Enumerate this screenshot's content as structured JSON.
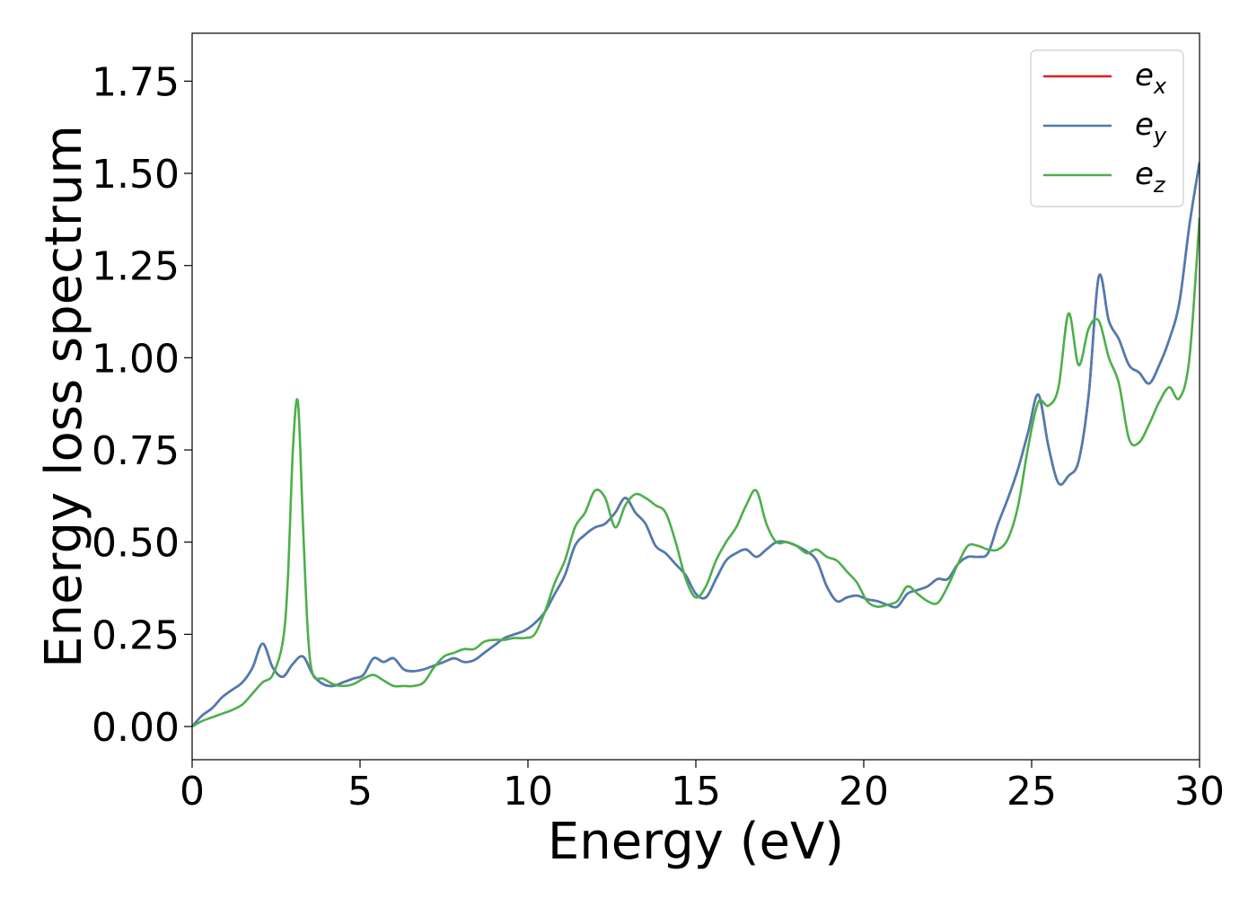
{
  "chart_data": {
    "type": "line",
    "title": "",
    "xlabel": "Energy (eV)",
    "ylabel": "Energy loss spectrum",
    "xlim": [
      0,
      30
    ],
    "ylim": [
      -0.09,
      1.88
    ],
    "xticks": [
      0,
      5,
      10,
      15,
      20,
      25,
      30
    ],
    "xtick_labels": [
      "0",
      "5",
      "10",
      "15",
      "20",
      "25",
      "30"
    ],
    "yticks": [
      0.0,
      0.25,
      0.5,
      0.75,
      1.0,
      1.25,
      1.5,
      1.75
    ],
    "ytick_labels": [
      "0.00",
      "0.25",
      "0.50",
      "0.75",
      "1.00",
      "1.25",
      "1.50",
      "1.75"
    ],
    "grid": false,
    "legend_position": "top-right",
    "series": [
      {
        "name": "e_x",
        "legend_main": "e",
        "legend_sub": "x",
        "color": "#e41a1c",
        "x": [
          0,
          0.3,
          0.6,
          0.9,
          1.2,
          1.5,
          1.8,
          2.1,
          2.4,
          2.7,
          3.0,
          3.3,
          3.6,
          3.9,
          4.2,
          4.5,
          4.8,
          5.1,
          5.4,
          5.7,
          6.0,
          6.3,
          6.6,
          6.9,
          7.2,
          7.5,
          7.8,
          8.1,
          8.4,
          8.7,
          9.0,
          9.3,
          9.6,
          9.9,
          10.2,
          10.5,
          10.8,
          11.1,
          11.4,
          11.7,
          12.0,
          12.3,
          12.6,
          12.9,
          13.2,
          13.5,
          13.8,
          14.1,
          14.4,
          14.7,
          15.0,
          15.3,
          15.6,
          15.9,
          16.2,
          16.5,
          16.8,
          17.1,
          17.4,
          17.7,
          18.0,
          18.3,
          18.6,
          18.9,
          19.2,
          19.5,
          19.8,
          20.1,
          20.4,
          20.7,
          21.0,
          21.3,
          21.6,
          21.9,
          22.2,
          22.5,
          22.8,
          23.1,
          23.4,
          23.7,
          24.0,
          24.3,
          24.6,
          24.9,
          25.2,
          25.5,
          25.8,
          26.1,
          26.4,
          26.7,
          27.0,
          27.3,
          27.6,
          27.9,
          28.2,
          28.5,
          28.8,
          29.1,
          29.4,
          29.7,
          30.0
        ],
        "y": [
          0,
          0.03,
          0.05,
          0.08,
          0.1,
          0.12,
          0.16,
          0.225,
          0.16,
          0.135,
          0.17,
          0.19,
          0.14,
          0.115,
          0.11,
          0.12,
          0.13,
          0.14,
          0.185,
          0.175,
          0.185,
          0.155,
          0.15,
          0.155,
          0.165,
          0.175,
          0.185,
          0.175,
          0.18,
          0.2,
          0.22,
          0.24,
          0.25,
          0.26,
          0.28,
          0.31,
          0.36,
          0.41,
          0.49,
          0.52,
          0.54,
          0.55,
          0.58,
          0.62,
          0.58,
          0.55,
          0.49,
          0.47,
          0.44,
          0.41,
          0.36,
          0.35,
          0.4,
          0.45,
          0.47,
          0.48,
          0.46,
          0.48,
          0.5,
          0.5,
          0.49,
          0.475,
          0.45,
          0.38,
          0.34,
          0.35,
          0.355,
          0.345,
          0.34,
          0.33,
          0.325,
          0.36,
          0.37,
          0.38,
          0.4,
          0.4,
          0.44,
          0.46,
          0.46,
          0.47,
          0.55,
          0.62,
          0.7,
          0.8,
          0.9,
          0.76,
          0.66,
          0.68,
          0.72,
          0.9,
          1.22,
          1.1,
          1.05,
          0.98,
          0.96,
          0.93,
          0.98,
          1.05,
          1.15,
          1.36,
          1.53
        ]
      },
      {
        "name": "e_y",
        "legend_main": "e",
        "legend_sub": "y",
        "color": "#4a7db5",
        "x": [
          0,
          0.3,
          0.6,
          0.9,
          1.2,
          1.5,
          1.8,
          2.1,
          2.4,
          2.7,
          3.0,
          3.3,
          3.6,
          3.9,
          4.2,
          4.5,
          4.8,
          5.1,
          5.4,
          5.7,
          6.0,
          6.3,
          6.6,
          6.9,
          7.2,
          7.5,
          7.8,
          8.1,
          8.4,
          8.7,
          9.0,
          9.3,
          9.6,
          9.9,
          10.2,
          10.5,
          10.8,
          11.1,
          11.4,
          11.7,
          12.0,
          12.3,
          12.6,
          12.9,
          13.2,
          13.5,
          13.8,
          14.1,
          14.4,
          14.7,
          15.0,
          15.3,
          15.6,
          15.9,
          16.2,
          16.5,
          16.8,
          17.1,
          17.4,
          17.7,
          18.0,
          18.3,
          18.6,
          18.9,
          19.2,
          19.5,
          19.8,
          20.1,
          20.4,
          20.7,
          21.0,
          21.3,
          21.6,
          21.9,
          22.2,
          22.5,
          22.8,
          23.1,
          23.4,
          23.7,
          24.0,
          24.3,
          24.6,
          24.9,
          25.2,
          25.5,
          25.8,
          26.1,
          26.4,
          26.7,
          27.0,
          27.3,
          27.6,
          27.9,
          28.2,
          28.5,
          28.8,
          29.1,
          29.4,
          29.7,
          30.0
        ],
        "y": [
          0,
          0.03,
          0.05,
          0.08,
          0.1,
          0.12,
          0.16,
          0.225,
          0.16,
          0.135,
          0.17,
          0.19,
          0.14,
          0.115,
          0.11,
          0.12,
          0.13,
          0.14,
          0.185,
          0.175,
          0.185,
          0.155,
          0.15,
          0.155,
          0.165,
          0.175,
          0.185,
          0.175,
          0.18,
          0.2,
          0.22,
          0.24,
          0.25,
          0.26,
          0.28,
          0.31,
          0.36,
          0.41,
          0.49,
          0.52,
          0.54,
          0.55,
          0.58,
          0.62,
          0.58,
          0.55,
          0.49,
          0.47,
          0.44,
          0.41,
          0.36,
          0.35,
          0.4,
          0.45,
          0.47,
          0.48,
          0.46,
          0.48,
          0.5,
          0.5,
          0.49,
          0.475,
          0.45,
          0.38,
          0.34,
          0.35,
          0.355,
          0.345,
          0.34,
          0.33,
          0.325,
          0.36,
          0.37,
          0.38,
          0.4,
          0.4,
          0.44,
          0.46,
          0.46,
          0.47,
          0.55,
          0.62,
          0.7,
          0.8,
          0.9,
          0.76,
          0.66,
          0.68,
          0.72,
          0.9,
          1.22,
          1.1,
          1.05,
          0.98,
          0.96,
          0.93,
          0.98,
          1.05,
          1.15,
          1.36,
          1.53
        ]
      },
      {
        "name": "e_z",
        "legend_main": "e",
        "legend_sub": "z",
        "color": "#4daf4a",
        "x": [
          0,
          0.3,
          0.6,
          0.9,
          1.2,
          1.5,
          1.8,
          2.1,
          2.4,
          2.7,
          2.85,
          3.0,
          3.15,
          3.3,
          3.45,
          3.6,
          3.9,
          4.2,
          4.5,
          4.8,
          5.1,
          5.4,
          5.7,
          6.0,
          6.3,
          6.6,
          6.9,
          7.2,
          7.5,
          7.8,
          8.1,
          8.4,
          8.7,
          9.0,
          9.3,
          9.6,
          9.9,
          10.2,
          10.5,
          10.8,
          11.1,
          11.4,
          11.7,
          12.0,
          12.3,
          12.6,
          12.9,
          13.2,
          13.5,
          13.8,
          14.1,
          14.4,
          14.7,
          15.0,
          15.3,
          15.6,
          15.9,
          16.2,
          16.5,
          16.8,
          17.1,
          17.4,
          17.7,
          18.0,
          18.3,
          18.6,
          18.9,
          19.2,
          19.5,
          19.8,
          20.1,
          20.4,
          20.7,
          21.0,
          21.3,
          21.6,
          21.9,
          22.2,
          22.5,
          22.8,
          23.1,
          23.4,
          23.7,
          24.0,
          24.3,
          24.6,
          24.9,
          25.2,
          25.5,
          25.8,
          26.1,
          26.4,
          26.7,
          27.0,
          27.3,
          27.6,
          27.9,
          28.2,
          28.5,
          28.8,
          29.1,
          29.4,
          29.7,
          30.0
        ],
        "y": [
          0,
          0.015,
          0.025,
          0.035,
          0.045,
          0.06,
          0.09,
          0.12,
          0.14,
          0.23,
          0.4,
          0.75,
          0.88,
          0.55,
          0.25,
          0.14,
          0.13,
          0.115,
          0.11,
          0.115,
          0.13,
          0.14,
          0.125,
          0.11,
          0.11,
          0.11,
          0.12,
          0.16,
          0.19,
          0.2,
          0.21,
          0.21,
          0.23,
          0.235,
          0.235,
          0.24,
          0.24,
          0.25,
          0.31,
          0.39,
          0.45,
          0.54,
          0.58,
          0.64,
          0.62,
          0.54,
          0.6,
          0.63,
          0.62,
          0.6,
          0.58,
          0.5,
          0.4,
          0.35,
          0.38,
          0.45,
          0.5,
          0.54,
          0.6,
          0.64,
          0.55,
          0.5,
          0.5,
          0.49,
          0.47,
          0.48,
          0.46,
          0.45,
          0.42,
          0.39,
          0.34,
          0.325,
          0.33,
          0.34,
          0.38,
          0.36,
          0.34,
          0.335,
          0.38,
          0.44,
          0.49,
          0.49,
          0.48,
          0.48,
          0.51,
          0.6,
          0.76,
          0.88,
          0.87,
          0.92,
          1.12,
          0.98,
          1.08,
          1.1,
          1.0,
          0.93,
          0.78,
          0.77,
          0.82,
          0.88,
          0.92,
          0.89,
          1.0,
          1.38
        ]
      }
    ]
  }
}
